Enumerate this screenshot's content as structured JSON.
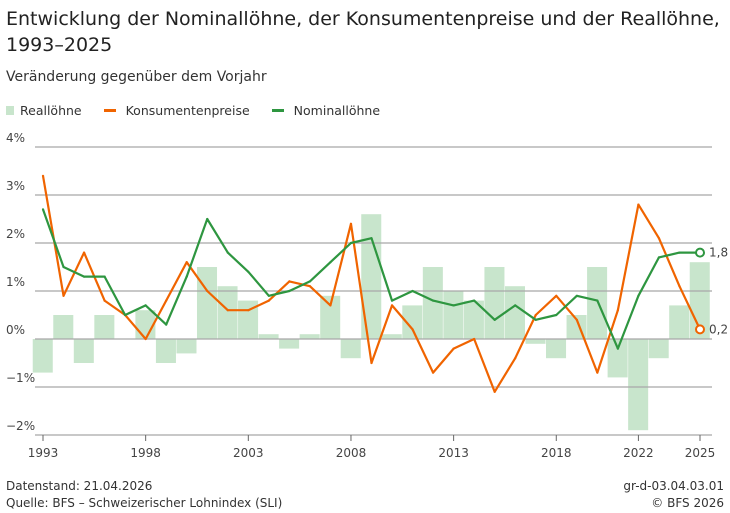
{
  "chart_data": {
    "type": "bar+line",
    "title": "Entwicklung der Nominallöhne, der Konsumentenpreise und der Reallöhne, 1993–2025",
    "subtitle": "Veränderung gegenüber dem Vorjahr",
    "xlabel": "",
    "ylabel": "",
    "ylim": [
      -2,
      4
    ],
    "yticks": [
      "4%",
      "3%",
      "2%",
      "1%",
      "0%",
      "−1%",
      "−2%"
    ],
    "ytick_values": [
      4,
      3,
      2,
      1,
      0,
      -1,
      -2
    ],
    "xticks": [
      "1993",
      "1998",
      "2003",
      "2008",
      "2013",
      "2018",
      "2022",
      "2025"
    ],
    "xtick_values": [
      1993,
      1998,
      2003,
      2008,
      2013,
      2018,
      2022,
      2025
    ],
    "x": [
      1993,
      1994,
      1995,
      1996,
      1997,
      1998,
      1999,
      2000,
      2001,
      2002,
      2003,
      2004,
      2005,
      2006,
      2007,
      2008,
      2009,
      2010,
      2011,
      2012,
      2013,
      2014,
      2015,
      2016,
      2017,
      2018,
      2019,
      2020,
      2021,
      2022,
      2023,
      2024,
      2025
    ],
    "series": [
      {
        "name": "Reallöhne",
        "type": "bar",
        "color": "#c8e5cc",
        "values": [
          -0.7,
          0.5,
          -0.5,
          0.5,
          0.0,
          0.6,
          -0.5,
          -0.3,
          1.5,
          1.1,
          0.8,
          0.1,
          -0.2,
          0.1,
          0.9,
          -0.4,
          2.6,
          0.1,
          0.7,
          1.5,
          1.0,
          0.8,
          1.5,
          1.1,
          -0.1,
          -0.4,
          0.5,
          1.5,
          -0.8,
          -1.9,
          -0.4,
          0.7,
          1.6
        ]
      },
      {
        "name": "Konsumentenpreise",
        "type": "line",
        "color": "#f06400",
        "values": [
          3.4,
          0.9,
          1.8,
          0.8,
          0.5,
          0.0,
          0.8,
          1.6,
          1.0,
          0.6,
          0.6,
          0.8,
          1.2,
          1.1,
          0.7,
          2.4,
          -0.5,
          0.7,
          0.2,
          -0.7,
          -0.2,
          0.0,
          -1.1,
          -0.4,
          0.5,
          0.9,
          0.4,
          -0.7,
          0.6,
          2.8,
          2.1,
          1.1,
          0.2
        ]
      },
      {
        "name": "Nominallöhne",
        "type": "line",
        "color": "#2e9640",
        "values": [
          2.7,
          1.5,
          1.3,
          1.3,
          0.5,
          0.7,
          0.3,
          1.3,
          2.5,
          1.8,
          1.4,
          0.9,
          1.0,
          1.2,
          1.6,
          2.0,
          2.1,
          0.8,
          1.0,
          0.8,
          0.7,
          0.8,
          0.4,
          0.7,
          0.4,
          0.5,
          0.9,
          0.8,
          -0.2,
          0.9,
          1.7,
          1.8,
          1.8
        ]
      }
    ],
    "annotations": [
      {
        "series": "Nominallöhne",
        "x": 2025,
        "label": "1,8"
      },
      {
        "series": "Konsumentenpreise",
        "x": 2025,
        "label": "0,2"
      }
    ],
    "legend": "top-left",
    "grid": true
  },
  "footer": {
    "status": "Datenstand: 21.04.2026",
    "source": "Quelle: BFS – Schweizerischer Lohnindex (SLI)",
    "code": "gr-d-03.04.03.01",
    "copyright": "© BFS 2026"
  }
}
